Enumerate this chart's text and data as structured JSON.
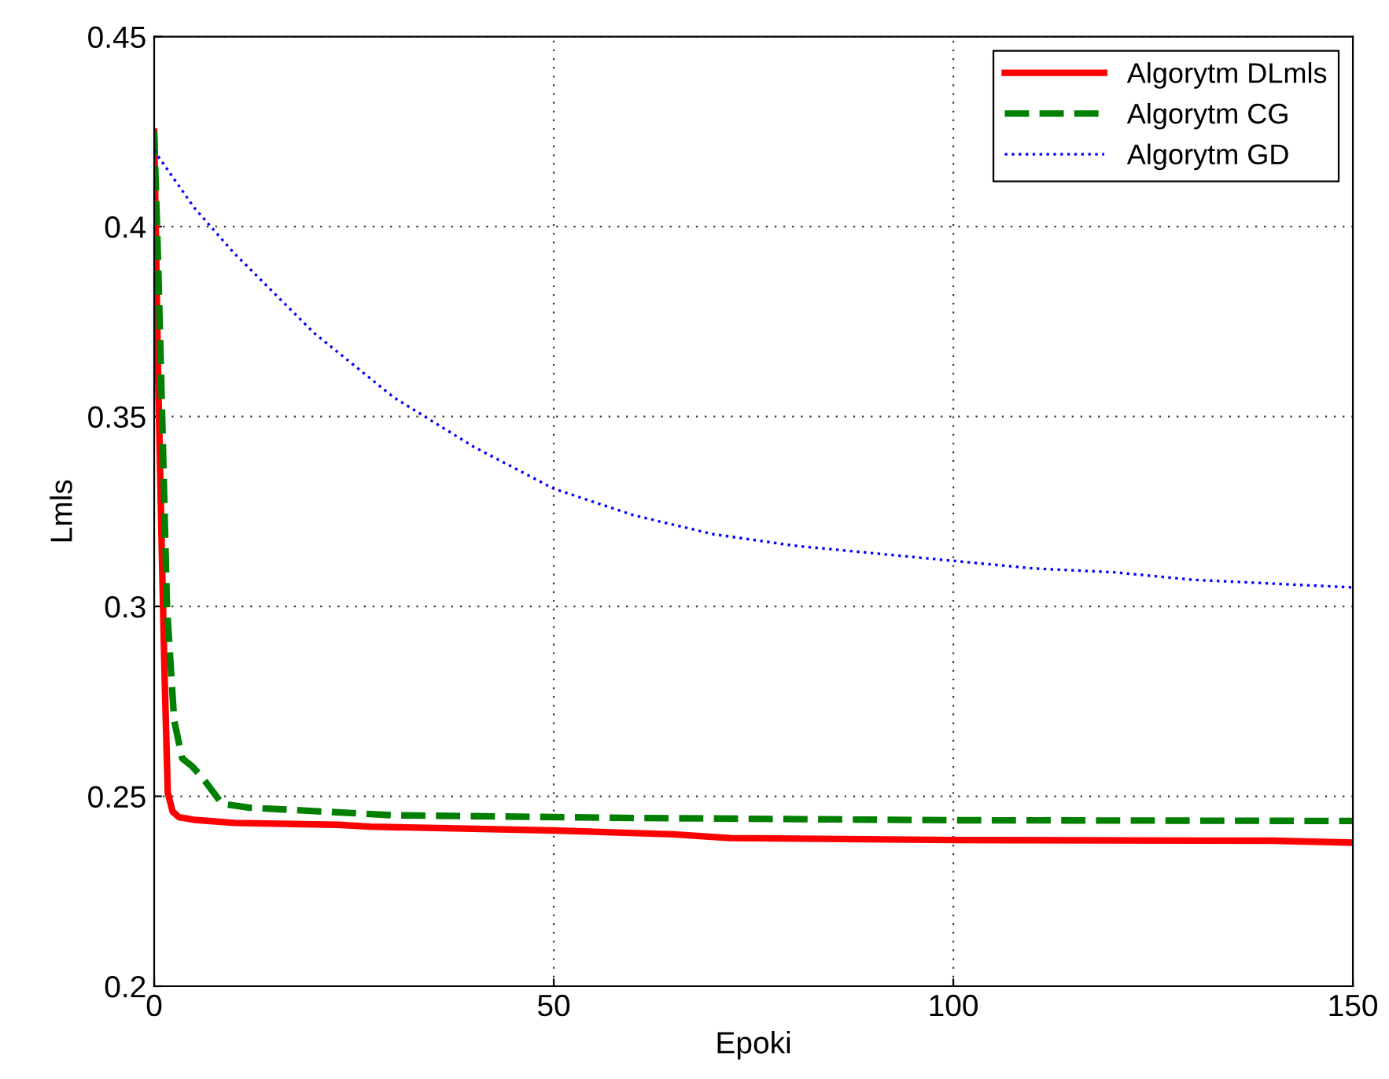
{
  "chart_data": {
    "type": "line",
    "xlabel": "Epoki",
    "ylabel": "Lmls",
    "xlim": [
      0,
      150
    ],
    "xticks": [
      0,
      50,
      100,
      150
    ],
    "ylim": [
      0.2,
      0.45
    ],
    "yticks": [
      0.2,
      0.25,
      0.3,
      0.35,
      0.4,
      0.45
    ],
    "grid": true,
    "legend": "top right",
    "series": [
      {
        "name": "Algorytm DLmls",
        "color": "#ff0000",
        "line_style": "solid",
        "x": [
          0,
          0.5,
          1,
          1.3,
          1.7,
          2.3,
          3.1,
          5,
          10,
          23,
          27,
          50,
          65,
          72,
          100,
          140,
          150
        ],
        "values": [
          0.425,
          0.36,
          0.31,
          0.282,
          0.251,
          0.246,
          0.2445,
          0.2438,
          0.243,
          0.2425,
          0.242,
          0.241,
          0.24,
          0.239,
          0.2385,
          0.2383,
          0.2378
        ]
      },
      {
        "name": "Algorytm CG",
        "color": "#007f00",
        "line_style": "dashed",
        "x": [
          0,
          0.5,
          1,
          1.6,
          2.5,
          3.5,
          4.7,
          6,
          8.5,
          12,
          30,
          60,
          100,
          150
        ],
        "values": [
          0.425,
          0.39,
          0.35,
          0.3,
          0.27,
          0.26,
          0.258,
          0.255,
          0.248,
          0.247,
          0.245,
          0.2443,
          0.2437,
          0.2435
        ]
      },
      {
        "name": "Algorytm GD",
        "color": "#0000ff",
        "line_style": "dotted",
        "x": [
          0,
          5,
          10,
          20,
          30,
          40,
          50,
          60,
          70,
          80,
          90,
          100,
          110,
          120,
          130,
          140,
          150
        ],
        "values": [
          0.42,
          0.405,
          0.393,
          0.372,
          0.355,
          0.342,
          0.331,
          0.324,
          0.319,
          0.316,
          0.314,
          0.312,
          0.31,
          0.309,
          0.307,
          0.306,
          0.305
        ]
      }
    ]
  }
}
